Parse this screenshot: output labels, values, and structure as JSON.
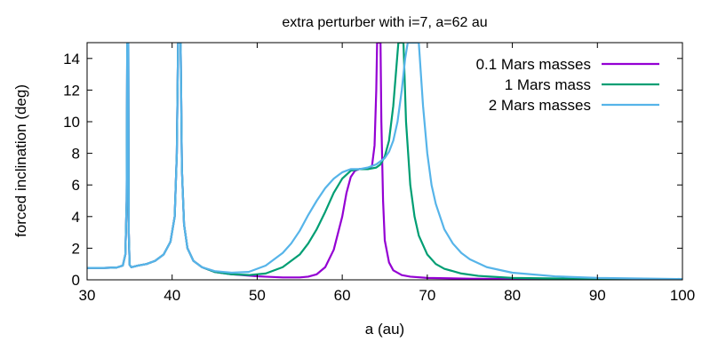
{
  "chart_data": {
    "type": "line",
    "title": "extra perturber with i=7, a=62 au",
    "xlabel": "a (au)",
    "ylabel": "forced inclination (deg)",
    "xlim": [
      30,
      100
    ],
    "ylim": [
      0,
      15
    ],
    "xticks": [
      30,
      40,
      50,
      60,
      70,
      80,
      90,
      100
    ],
    "yticks": [
      0,
      2,
      4,
      6,
      8,
      10,
      12,
      14
    ],
    "grid": false,
    "legend_position": "top-right",
    "series": [
      {
        "name": "0.1 Mars masses",
        "color": "#9400d3",
        "points": [
          [
            30,
            0.75
          ],
          [
            32,
            0.75
          ],
          [
            33.5,
            0.78
          ],
          [
            34.2,
            0.9
          ],
          [
            34.5,
            1.6
          ],
          [
            34.65,
            5
          ],
          [
            34.72,
            15
          ],
          [
            34.85,
            15
          ],
          [
            34.9,
            3
          ],
          [
            35.0,
            0.95
          ],
          [
            35.2,
            0.8
          ],
          [
            36,
            0.9
          ],
          [
            37,
            1.0
          ],
          [
            38,
            1.2
          ],
          [
            39,
            1.6
          ],
          [
            39.8,
            2.4
          ],
          [
            40.3,
            4
          ],
          [
            40.55,
            8
          ],
          [
            40.7,
            15
          ],
          [
            41.0,
            15
          ],
          [
            41.15,
            7
          ],
          [
            41.4,
            3.5
          ],
          [
            41.8,
            2.0
          ],
          [
            42.5,
            1.2
          ],
          [
            43.5,
            0.8
          ],
          [
            45,
            0.5
          ],
          [
            47,
            0.35
          ],
          [
            50,
            0.22
          ],
          [
            53,
            0.15
          ],
          [
            55,
            0.15
          ],
          [
            56,
            0.2
          ],
          [
            57,
            0.35
          ],
          [
            58,
            0.8
          ],
          [
            59,
            1.9
          ],
          [
            60,
            4.0
          ],
          [
            60.5,
            5.5
          ],
          [
            61,
            6.5
          ],
          [
            61.5,
            6.9
          ],
          [
            62,
            7.0
          ],
          [
            63,
            7.0
          ],
          [
            63.5,
            7.2
          ],
          [
            63.8,
            8.5
          ],
          [
            64.0,
            12
          ],
          [
            64.1,
            15
          ],
          [
            64.5,
            15
          ],
          [
            64.6,
            10
          ],
          [
            64.8,
            5
          ],
          [
            65,
            2.5
          ],
          [
            65.5,
            1.1
          ],
          [
            66,
            0.6
          ],
          [
            67,
            0.3
          ],
          [
            68,
            0.2
          ],
          [
            70,
            0.12
          ],
          [
            75,
            0.07
          ],
          [
            80,
            0.05
          ],
          [
            90,
            0.03
          ],
          [
            100,
            0.02
          ]
        ]
      },
      {
        "name": "1 Mars mass",
        "color": "#009e73",
        "points": [
          [
            30,
            0.75
          ],
          [
            32,
            0.75
          ],
          [
            33.5,
            0.78
          ],
          [
            34.2,
            0.9
          ],
          [
            34.5,
            1.6
          ],
          [
            34.65,
            5
          ],
          [
            34.72,
            15
          ],
          [
            34.85,
            15
          ],
          [
            34.9,
            3
          ],
          [
            35.0,
            0.95
          ],
          [
            35.2,
            0.8
          ],
          [
            36,
            0.9
          ],
          [
            37,
            1.0
          ],
          [
            38,
            1.2
          ],
          [
            39,
            1.6
          ],
          [
            39.8,
            2.4
          ],
          [
            40.3,
            4
          ],
          [
            40.55,
            8
          ],
          [
            40.7,
            15
          ],
          [
            41.0,
            15
          ],
          [
            41.15,
            7
          ],
          [
            41.4,
            3.5
          ],
          [
            41.8,
            2.0
          ],
          [
            42.5,
            1.2
          ],
          [
            43.5,
            0.8
          ],
          [
            45,
            0.5
          ],
          [
            47,
            0.35
          ],
          [
            49,
            0.3
          ],
          [
            51,
            0.4
          ],
          [
            53,
            0.8
          ],
          [
            55,
            1.6
          ],
          [
            56,
            2.3
          ],
          [
            57,
            3.2
          ],
          [
            58,
            4.3
          ],
          [
            59,
            5.5
          ],
          [
            60,
            6.4
          ],
          [
            61,
            6.9
          ],
          [
            62,
            7.0
          ],
          [
            63,
            7.0
          ],
          [
            64,
            7.1
          ],
          [
            64.5,
            7.3
          ],
          [
            65,
            7.8
          ],
          [
            65.5,
            8.8
          ],
          [
            66,
            11
          ],
          [
            66.3,
            13
          ],
          [
            66.6,
            15
          ],
          [
            67.2,
            15
          ],
          [
            67.5,
            10
          ],
          [
            68,
            6
          ],
          [
            68.5,
            4
          ],
          [
            69,
            2.8
          ],
          [
            70,
            1.6
          ],
          [
            71,
            1.0
          ],
          [
            72,
            0.7
          ],
          [
            74,
            0.4
          ],
          [
            76,
            0.25
          ],
          [
            80,
            0.12
          ],
          [
            90,
            0.05
          ],
          [
            100,
            0.03
          ]
        ]
      },
      {
        "name": "2 Mars masses",
        "color": "#56b4e9",
        "points": [
          [
            30,
            0.75
          ],
          [
            32,
            0.75
          ],
          [
            33.5,
            0.78
          ],
          [
            34.2,
            0.9
          ],
          [
            34.5,
            1.6
          ],
          [
            34.65,
            5
          ],
          [
            34.72,
            15
          ],
          [
            34.85,
            15
          ],
          [
            34.9,
            3
          ],
          [
            35.0,
            0.95
          ],
          [
            35.2,
            0.8
          ],
          [
            36,
            0.9
          ],
          [
            37,
            1.0
          ],
          [
            38,
            1.2
          ],
          [
            39,
            1.6
          ],
          [
            39.8,
            2.4
          ],
          [
            40.3,
            4
          ],
          [
            40.55,
            8
          ],
          [
            40.7,
            15
          ],
          [
            41.0,
            15
          ],
          [
            41.15,
            7
          ],
          [
            41.4,
            3.5
          ],
          [
            41.8,
            2.0
          ],
          [
            42.5,
            1.2
          ],
          [
            43.5,
            0.8
          ],
          [
            45,
            0.55
          ],
          [
            47,
            0.45
          ],
          [
            49,
            0.5
          ],
          [
            51,
            0.9
          ],
          [
            53,
            1.7
          ],
          [
            54,
            2.3
          ],
          [
            55,
            3.1
          ],
          [
            56,
            4.1
          ],
          [
            57,
            5.0
          ],
          [
            58,
            5.8
          ],
          [
            59,
            6.4
          ],
          [
            60,
            6.8
          ],
          [
            61,
            7.0
          ],
          [
            62,
            7.0
          ],
          [
            63,
            7.1
          ],
          [
            64,
            7.3
          ],
          [
            65,
            7.7
          ],
          [
            65.5,
            8.1
          ],
          [
            66,
            8.8
          ],
          [
            66.5,
            10.0
          ],
          [
            67,
            12
          ],
          [
            67.4,
            14
          ],
          [
            67.7,
            15
          ],
          [
            69,
            15
          ],
          [
            69.5,
            11
          ],
          [
            70,
            8
          ],
          [
            70.5,
            6
          ],
          [
            71,
            4.8
          ],
          [
            72,
            3.2
          ],
          [
            73,
            2.3
          ],
          [
            74,
            1.7
          ],
          [
            75,
            1.3
          ],
          [
            77,
            0.8
          ],
          [
            80,
            0.45
          ],
          [
            85,
            0.22
          ],
          [
            90,
            0.12
          ],
          [
            100,
            0.05
          ]
        ]
      }
    ]
  }
}
